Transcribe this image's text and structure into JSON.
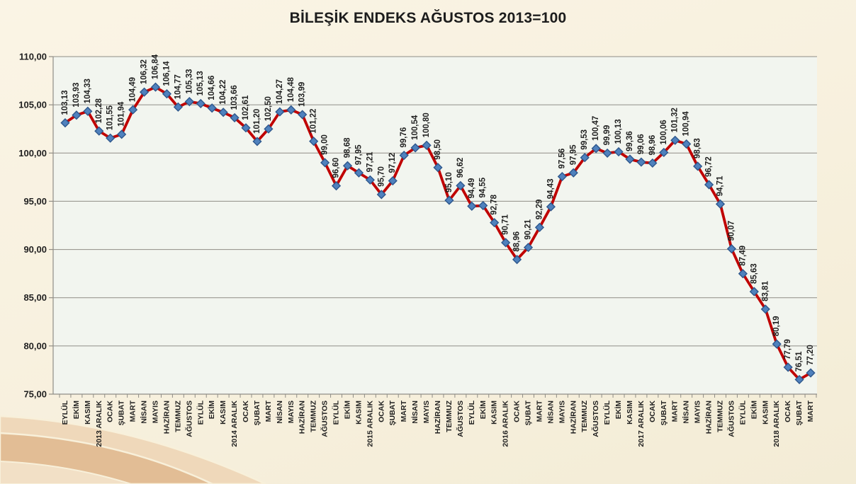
{
  "chart_data": {
    "type": "line",
    "title": "BİLEŞİK ENDEKS AĞUSTOS 2013=100",
    "xlabel": "",
    "ylabel": "",
    "ylim": [
      75,
      110
    ],
    "ytick_step": 5,
    "ytick_labels": [
      "75,00",
      "80,00",
      "85,00",
      "90,00",
      "95,00",
      "100,00",
      "105,00",
      "110,00"
    ],
    "decimal_separator": ",",
    "grid": true,
    "legend_position": "none",
    "data_labels_visible": true,
    "categories": [
      "EYLÜL",
      "EKİM",
      "KASIM",
      "2013 ARALIK",
      "OCAK",
      "ŞUBAT",
      "MART",
      "NİSAN",
      "MAYIS",
      "HAZİRAN",
      "TEMMUZ",
      "AĞUSTOS",
      "EYLÜL",
      "EKİM",
      "KASIM",
      "2014 ARALIK",
      "OCAK",
      "ŞUBAT",
      "MART",
      "NİSAN",
      "MAYIS",
      "HAZİRAN",
      "TEMMUZ",
      "AĞUSTOS",
      "EYLÜL",
      "EKİM",
      "KASIM",
      "2015 ARALIK",
      "OCAK",
      "ŞUBAT",
      "MART",
      "NİSAN",
      "MAYIS",
      "HAZİRAN",
      "TEMMUZ",
      "AĞUSTOS",
      "EYLÜL",
      "EKİM",
      "KASIM",
      "2016 ARALIK",
      "OCAK",
      "ŞUBAT",
      "MART",
      "NİSAN",
      "MAYIS",
      "HAZİRAN",
      "TEMMUZ",
      "AĞUSTOS",
      "EYLÜL",
      "EKİM",
      "KASIM",
      "2017 ARALIK",
      "OCAK",
      "ŞUBAT",
      "MART",
      "NİSAN",
      "MAYIS",
      "HAZİRAN",
      "TEMMUZ",
      "AĞUSTOS",
      "EYLÜL",
      "EKİM",
      "KASIM",
      "2018 ARALIK",
      "OCAK",
      "ŞUBAT",
      "MART"
    ],
    "values": [
      103.13,
      103.93,
      104.33,
      102.28,
      101.55,
      101.94,
      104.49,
      106.32,
      106.84,
      106.14,
      104.77,
      105.33,
      105.13,
      104.66,
      104.22,
      103.66,
      102.61,
      101.2,
      102.5,
      104.27,
      104.48,
      103.99,
      101.22,
      99.0,
      96.6,
      98.68,
      97.95,
      97.21,
      95.7,
      97.12,
      99.76,
      100.54,
      100.8,
      98.5,
      95.1,
      96.62,
      94.49,
      94.55,
      92.78,
      90.71,
      88.96,
      90.21,
      92.29,
      94.43,
      97.56,
      97.95,
      99.53,
      100.47,
      99.99,
      100.13,
      99.36,
      99.06,
      98.96,
      100.06,
      101.32,
      100.94,
      98.63,
      96.72,
      94.71,
      90.07,
      87.49,
      85.63,
      83.81,
      80.19,
      77.79,
      76.51,
      77.2
    ],
    "colors": {
      "line": "#c00000",
      "marker_fill": "#4f81bd",
      "marker_stroke": "#2e578c",
      "grid": "#8f8d86",
      "axis": "#8f8d86",
      "label_text": "#1f1f1f",
      "plot_background": "#f2f5ef",
      "slide_background": "#f8f1df",
      "corner_decoration_dark": "#e2bd95",
      "corner_decoration_light": "#efd8ba"
    }
  }
}
